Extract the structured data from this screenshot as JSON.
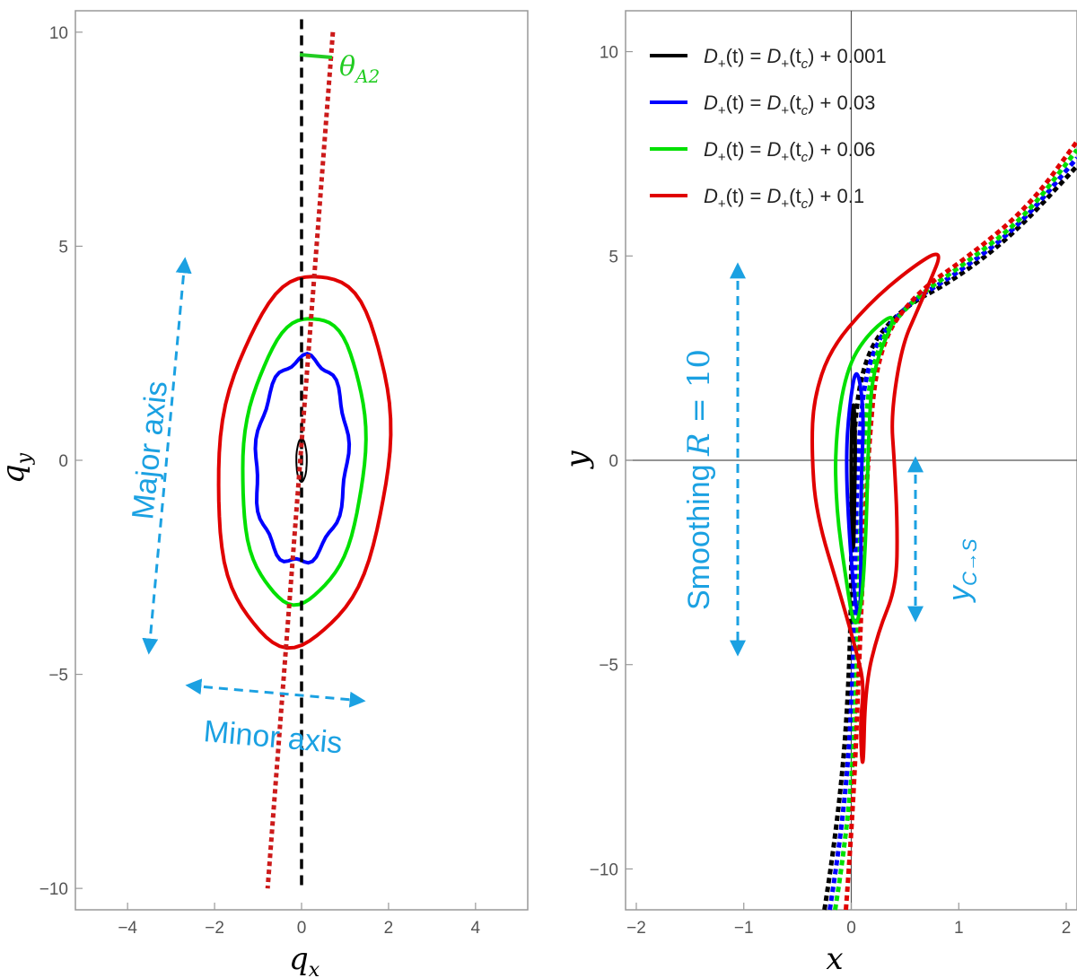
{
  "colors": {
    "black": "#000000",
    "blue": "#0000ff",
    "green": "#00e000",
    "red": "#e00000",
    "dotted_red": "#cc1a1a",
    "annotation": "#1ba1e2",
    "theta_green": "#22cc22",
    "frame": "#999999"
  },
  "chart_data": [
    {
      "type": "line",
      "panel": "left",
      "xlabel": "q_x",
      "ylabel": "q_y",
      "xlim": [
        -5.2,
        5.2
      ],
      "ylim": [
        -10.5,
        10.5
      ],
      "xticks": [
        -4,
        -2,
        0,
        2,
        4
      ],
      "xtick_labels": [
        "−4",
        "−2",
        "0",
        "2",
        "4"
      ],
      "yticks": [
        -10,
        -5,
        0,
        5,
        10
      ],
      "ytick_labels": [
        "−10",
        "−5",
        "0",
        "5",
        "10"
      ],
      "grid": false,
      "series": [
        {
          "color": "red",
          "shape": "closed-contour",
          "center": [
            0.05,
            0.0
          ],
          "semi_axes": [
            1.95,
            4.35
          ],
          "tilt_deg": 5
        },
        {
          "color": "green",
          "shape": "closed-contour",
          "center": [
            0.05,
            0.0
          ],
          "semi_axes": [
            1.4,
            3.35
          ],
          "tilt_deg": 4
        },
        {
          "color": "blue",
          "shape": "closed-contour",
          "center": [
            0.0,
            0.0
          ],
          "semi_axes": [
            1.05,
            2.4
          ],
          "tilt_deg": 3
        },
        {
          "color": "black",
          "shape": "closed-contour",
          "center": [
            0.0,
            0.0
          ],
          "semi_axes": [
            0.12,
            0.5
          ],
          "tilt_deg": 0
        }
      ],
      "reference_lines": [
        {
          "color": "black",
          "style": "dashed",
          "x": [
            0.0,
            0.0
          ],
          "y": [
            10.3,
            -10.0
          ]
        },
        {
          "color": "dotted_red",
          "style": "dotted",
          "x": [
            0.72,
            -0.78
          ],
          "y": [
            10.0,
            -10.0
          ]
        }
      ],
      "annotations": {
        "theta": "θ",
        "theta_sub": "A2",
        "major_axis": "Major axis",
        "minor_axis": "Minor axis"
      }
    },
    {
      "type": "line",
      "panel": "right",
      "xlabel": "x",
      "ylabel": "y",
      "xlim": [
        -2.1,
        2.1
      ],
      "ylim": [
        -11.0,
        11.0
      ],
      "xticks": [
        -2,
        -1,
        0,
        1,
        2
      ],
      "xtick_labels": [
        "−2",
        "−1",
        "0",
        "1",
        "2"
      ],
      "yticks": [
        -10,
        -5,
        0,
        5,
        10
      ],
      "ytick_labels": [
        "−10",
        "−5",
        "0",
        "5",
        "10"
      ],
      "grid": false,
      "legend_position": "top-left",
      "series": [
        {
          "name": "0.001",
          "color": "black",
          "contour": [
            [
              0.0,
              0.6
            ],
            [
              0.02,
              1.6
            ],
            [
              0.04,
              0.6
            ],
            [
              0.03,
              -1.0
            ],
            [
              0.02,
              -2.5
            ],
            [
              0.0,
              -1.0
            ]
          ],
          "trajectory": [
            [
              -0.25,
              -11.0
            ],
            [
              -0.1,
              -8.5
            ],
            [
              0.0,
              -4.5
            ],
            [
              0.0,
              0.0
            ],
            [
              0.1,
              2.5
            ],
            [
              0.45,
              3.7
            ],
            [
              0.95,
              4.4
            ],
            [
              1.5,
              5.5
            ],
            [
              2.1,
              7.2
            ]
          ]
        },
        {
          "name": "0.03",
          "color": "blue",
          "contour": [
            [
              -0.05,
              0.0
            ],
            [
              -0.02,
              1.3
            ],
            [
              0.05,
              2.4
            ],
            [
              0.12,
              1.2
            ],
            [
              0.09,
              -0.5
            ],
            [
              0.09,
              -2.6
            ],
            [
              0.08,
              -4.0
            ],
            [
              0.03,
              -3.4
            ],
            [
              -0.02,
              -1.8
            ]
          ],
          "trajectory": [
            [
              -0.2,
              -11.0
            ],
            [
              -0.05,
              -8.5
            ],
            [
              0.03,
              -4.5
            ],
            [
              0.05,
              0.0
            ],
            [
              0.15,
              2.6
            ],
            [
              0.5,
              3.8
            ],
            [
              1.0,
              4.6
            ],
            [
              1.55,
              5.7
            ],
            [
              2.1,
              7.4
            ]
          ]
        },
        {
          "name": "0.06",
          "color": "green",
          "contour": [
            [
              -0.15,
              0.5
            ],
            [
              -0.05,
              2.2
            ],
            [
              0.15,
              3.1
            ],
            [
              0.45,
              3.7
            ],
            [
              0.2,
              2.3
            ],
            [
              0.16,
              0.6
            ],
            [
              0.14,
              -1.6
            ],
            [
              0.1,
              -3.5
            ],
            [
              0.03,
              -4.2
            ],
            [
              -0.05,
              -2.9
            ],
            [
              -0.14,
              -1.2
            ]
          ],
          "trajectory": [
            [
              -0.15,
              -11.0
            ],
            [
              0.0,
              -8.5
            ],
            [
              0.06,
              -4.5
            ],
            [
              0.1,
              0.0
            ],
            [
              0.2,
              2.7
            ],
            [
              0.55,
              3.9
            ],
            [
              1.05,
              4.8
            ],
            [
              1.6,
              5.9
            ],
            [
              2.1,
              7.6
            ]
          ]
        },
        {
          "name": "0.1",
          "color": "red",
          "contour": [
            [
              -0.37,
              0.3
            ],
            [
              -0.33,
              -1.3
            ],
            [
              -0.1,
              -3.3
            ],
            [
              0.05,
              -4.7
            ],
            [
              0.12,
              -5.5
            ],
            [
              0.08,
              -6.5
            ],
            [
              0.11,
              -7.8
            ],
            [
              0.13,
              -5.5
            ],
            [
              0.25,
              -4.2
            ],
            [
              0.42,
              -3.1
            ],
            [
              0.43,
              -1.6
            ],
            [
              0.4,
              0.0
            ],
            [
              0.37,
              1.1
            ],
            [
              0.47,
              2.8
            ],
            [
              0.62,
              3.7
            ],
            [
              0.72,
              4.3
            ],
            [
              0.86,
              5.2
            ],
            [
              0.55,
              4.7
            ],
            [
              0.15,
              3.8
            ],
            [
              -0.2,
              2.7
            ],
            [
              -0.35,
              1.5
            ]
          ],
          "trajectory": [
            [
              -0.05,
              -11.0
            ],
            [
              0.02,
              -8.5
            ],
            [
              0.08,
              -4.5
            ],
            [
              0.15,
              0.0
            ],
            [
              0.25,
              2.8
            ],
            [
              0.6,
              4.1
            ],
            [
              1.1,
              5.0
            ],
            [
              1.65,
              6.2
            ],
            [
              2.1,
              7.8
            ]
          ]
        }
      ],
      "legend": [
        {
          "color": "black",
          "lhs": "D",
          "lhs_sub": "+",
          "arg": "(t) = ",
          "rhs": "D",
          "rhs_sub": "+",
          "rhs_arg_pre": "(t",
          "rhs_arg_sub": "c",
          "rhs_arg_post": ") + 0.001"
        },
        {
          "color": "blue",
          "lhs": "D",
          "lhs_sub": "+",
          "arg": "(t) = ",
          "rhs": "D",
          "rhs_sub": "+",
          "rhs_arg_pre": "(t",
          "rhs_arg_sub": "c",
          "rhs_arg_post": ") + 0.03"
        },
        {
          "color": "green",
          "lhs": "D",
          "lhs_sub": "+",
          "arg": "(t) = ",
          "rhs": "D",
          "rhs_sub": "+",
          "rhs_arg_pre": "(t",
          "rhs_arg_sub": "c",
          "rhs_arg_post": ") + 0.06"
        },
        {
          "color": "red",
          "lhs": "D",
          "lhs_sub": "+",
          "arg": "(t) = ",
          "rhs": "D",
          "rhs_sub": "+",
          "rhs_arg_pre": "(t",
          "rhs_arg_sub": "c",
          "rhs_arg_post": ") + 0.1"
        }
      ],
      "annotations": {
        "smoothing": "Smoothing ",
        "smoothing_var": "R",
        "smoothing_val": " = 10",
        "ycs": "y",
        "ycs_sub": "C→S"
      }
    }
  ]
}
